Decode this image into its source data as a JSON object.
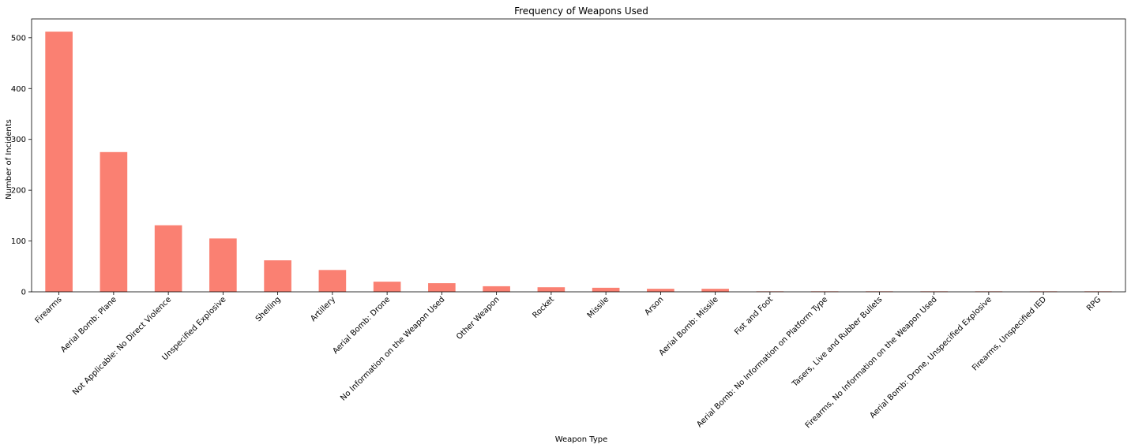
{
  "chart_data": {
    "type": "bar",
    "title": "Frequency of Weapons Used",
    "xlabel": "Weapon Type",
    "ylabel": "Number of Incidents",
    "categories": [
      "Firearms",
      "Aerial Bomb: Plane",
      "Not Applicable: No Direct Violence",
      "Unspecified Explosive",
      "Shelling",
      "Artillery",
      "Aerial Bomb: Drone",
      "No Information on the Weapon Used",
      "Other Weapon",
      "Rocket",
      "Missile",
      "Arson",
      "Aerial Bomb: Missile",
      "Fist and Foot",
      "Aerial Bomb: No Information on Platform Type",
      "Tasers, Live and Rubber Bullets",
      "Firearms, No Information on the Weapon Used",
      "Aerial Bomb: Drone, Unspecified Explosive",
      "Firearms, Unspecified IED",
      "RPG"
    ],
    "values": [
      512,
      275,
      131,
      105,
      62,
      43,
      20,
      17,
      11,
      9,
      8,
      6,
      6,
      1,
      1,
      1,
      1,
      1,
      1,
      1
    ],
    "yticks": [
      0,
      100,
      200,
      300,
      400,
      500
    ],
    "ylim": [
      0,
      537
    ],
    "grid": false,
    "color": "#fa8072"
  }
}
